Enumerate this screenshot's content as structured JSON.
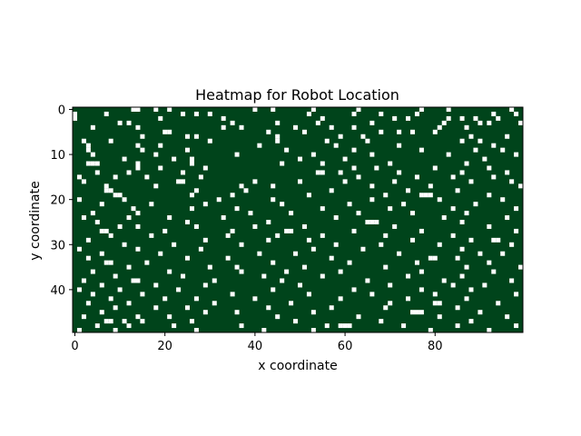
{
  "chart_data": {
    "type": "heatmap",
    "title": "Heatmap for Robot Location",
    "xlabel": "x coordinate",
    "ylabel": "y coordinate",
    "xlim": [
      -0.5,
      99.5
    ],
    "ylim": [
      49.5,
      -0.5
    ],
    "x_ticks": [
      0,
      20,
      40,
      60,
      80
    ],
    "y_ticks": [
      0,
      10,
      20,
      30,
      40
    ],
    "grid": false,
    "legend": "none",
    "colormap": {
      "0": "#00441b",
      "1": "#ffffff"
    },
    "grid_size": {
      "cols": 100,
      "rows": 50
    },
    "occupied_cells_note_free": [],
    "white_cells": [
      [
        0,
        13
      ],
      [
        0,
        14
      ],
      [
        0,
        18
      ],
      [
        0,
        21
      ],
      [
        0,
        40
      ],
      [
        0,
        44
      ],
      [
        0,
        53
      ],
      [
        0,
        63
      ],
      [
        0,
        77
      ],
      [
        0,
        83
      ],
      [
        0,
        97
      ],
      [
        1,
        0
      ],
      [
        1,
        7
      ],
      [
        1,
        24
      ],
      [
        1,
        27
      ],
      [
        1,
        30
      ],
      [
        1,
        52
      ],
      [
        1,
        62
      ],
      [
        1,
        68
      ],
      [
        1,
        76
      ],
      [
        1,
        93
      ],
      [
        1,
        98
      ],
      [
        2,
        0
      ],
      [
        2,
        19
      ],
      [
        2,
        33
      ],
      [
        2,
        55
      ],
      [
        2,
        71
      ],
      [
        2,
        74
      ],
      [
        2,
        83
      ],
      [
        2,
        86
      ],
      [
        2,
        89
      ],
      [
        2,
        94
      ],
      [
        3,
        10
      ],
      [
        3,
        12
      ],
      [
        3,
        35
      ],
      [
        3,
        45
      ],
      [
        3,
        54
      ],
      [
        3,
        66
      ],
      [
        3,
        82
      ],
      [
        3,
        90
      ],
      [
        3,
        92
      ],
      [
        3,
        99
      ],
      [
        4,
        4
      ],
      [
        4,
        14
      ],
      [
        4,
        33
      ],
      [
        4,
        37
      ],
      [
        4,
        49
      ],
      [
        4,
        57
      ],
      [
        4,
        62
      ],
      [
        4,
        81
      ],
      [
        4,
        87
      ],
      [
        5,
        20
      ],
      [
        5,
        21
      ],
      [
        5,
        43
      ],
      [
        5,
        51
      ],
      [
        5,
        68
      ],
      [
        5,
        72
      ],
      [
        5,
        75
      ],
      [
        5,
        80
      ],
      [
        6,
        15
      ],
      [
        6,
        25
      ],
      [
        6,
        27
      ],
      [
        6,
        45
      ],
      [
        6,
        59
      ],
      [
        6,
        64
      ],
      [
        6,
        88
      ],
      [
        6,
        96
      ],
      [
        7,
        2
      ],
      [
        7,
        8
      ],
      [
        7,
        30
      ],
      [
        7,
        45
      ],
      [
        7,
        56
      ],
      [
        7,
        65
      ],
      [
        7,
        86
      ],
      [
        7,
        90
      ],
      [
        8,
        3
      ],
      [
        8,
        14
      ],
      [
        8,
        19
      ],
      [
        8,
        41
      ],
      [
        8,
        58
      ],
      [
        8,
        72
      ],
      [
        8,
        93
      ],
      [
        9,
        3
      ],
      [
        9,
        15
      ],
      [
        9,
        25
      ],
      [
        9,
        47
      ],
      [
        9,
        62
      ],
      [
        9,
        77
      ],
      [
        9,
        89
      ],
      [
        9,
        95
      ],
      [
        10,
        4
      ],
      [
        10,
        18
      ],
      [
        10,
        36
      ],
      [
        10,
        53
      ],
      [
        10,
        66
      ],
      [
        10,
        83
      ],
      [
        10,
        98
      ],
      [
        11,
        11
      ],
      [
        11,
        22
      ],
      [
        11,
        26
      ],
      [
        11,
        50
      ],
      [
        11,
        60
      ],
      [
        11,
        91
      ],
      [
        12,
        3
      ],
      [
        12,
        4
      ],
      [
        12,
        5
      ],
      [
        12,
        14
      ],
      [
        12,
        26
      ],
      [
        12,
        46
      ],
      [
        12,
        55
      ],
      [
        12,
        70
      ],
      [
        12,
        87
      ],
      [
        13,
        14
      ],
      [
        13,
        19
      ],
      [
        13,
        29
      ],
      [
        13,
        62
      ],
      [
        13,
        67
      ],
      [
        13,
        80
      ],
      [
        13,
        92
      ],
      [
        14,
        5
      ],
      [
        14,
        12
      ],
      [
        14,
        24
      ],
      [
        14,
        54
      ],
      [
        14,
        55
      ],
      [
        14,
        59
      ],
      [
        14,
        72
      ],
      [
        14,
        86
      ],
      [
        14,
        96
      ],
      [
        15,
        1
      ],
      [
        15,
        9
      ],
      [
        15,
        16
      ],
      [
        15,
        28
      ],
      [
        15,
        63
      ],
      [
        15,
        76
      ],
      [
        15,
        84
      ],
      [
        15,
        93
      ],
      [
        16,
        2
      ],
      [
        16,
        23
      ],
      [
        16,
        24
      ],
      [
        16,
        40
      ],
      [
        16,
        50
      ],
      [
        16,
        60
      ],
      [
        16,
        71
      ],
      [
        16,
        88
      ],
      [
        16,
        97
      ],
      [
        17,
        7
      ],
      [
        17,
        18
      ],
      [
        17,
        37
      ],
      [
        17,
        44
      ],
      [
        17,
        66
      ],
      [
        17,
        79
      ],
      [
        17,
        99
      ],
      [
        18,
        7
      ],
      [
        18,
        8
      ],
      [
        18,
        27
      ],
      [
        18,
        38
      ],
      [
        18,
        57
      ],
      [
        18,
        74
      ],
      [
        18,
        85
      ],
      [
        19,
        9
      ],
      [
        19,
        10
      ],
      [
        19,
        26
      ],
      [
        19,
        35
      ],
      [
        19,
        52
      ],
      [
        19,
        69
      ],
      [
        19,
        77
      ],
      [
        19,
        78
      ],
      [
        19,
        79
      ],
      [
        19,
        92
      ],
      [
        20,
        1
      ],
      [
        20,
        11
      ],
      [
        20,
        32
      ],
      [
        20,
        44
      ],
      [
        20,
        66
      ],
      [
        20,
        81
      ],
      [
        20,
        95
      ],
      [
        21,
        6
      ],
      [
        21,
        17
      ],
      [
        21,
        29
      ],
      [
        21,
        46
      ],
      [
        21,
        61
      ],
      [
        21,
        73
      ],
      [
        21,
        89
      ],
      [
        22,
        13
      ],
      [
        22,
        26
      ],
      [
        22,
        36
      ],
      [
        22,
        55
      ],
      [
        22,
        70
      ],
      [
        22,
        84
      ],
      [
        22,
        98
      ],
      [
        23,
        4
      ],
      [
        23,
        14
      ],
      [
        23,
        39
      ],
      [
        23,
        48
      ],
      [
        23,
        63
      ],
      [
        23,
        75
      ],
      [
        23,
        87
      ],
      [
        24,
        2
      ],
      [
        24,
        12
      ],
      [
        24,
        21
      ],
      [
        24,
        33
      ],
      [
        24,
        58
      ],
      [
        24,
        82
      ],
      [
        24,
        96
      ],
      [
        25,
        5
      ],
      [
        25,
        25
      ],
      [
        25,
        43
      ],
      [
        25,
        65
      ],
      [
        25,
        66
      ],
      [
        25,
        67
      ],
      [
        25,
        86
      ],
      [
        26,
        10
      ],
      [
        26,
        14
      ],
      [
        26,
        27
      ],
      [
        26,
        40
      ],
      [
        26,
        51
      ],
      [
        26,
        71
      ],
      [
        26,
        92
      ],
      [
        27,
        6
      ],
      [
        27,
        7
      ],
      [
        27,
        20
      ],
      [
        27,
        35
      ],
      [
        27,
        47
      ],
      [
        27,
        48
      ],
      [
        27,
        62
      ],
      [
        27,
        77
      ],
      [
        27,
        98
      ],
      [
        28,
        8
      ],
      [
        28,
        17
      ],
      [
        28,
        34
      ],
      [
        28,
        45
      ],
      [
        28,
        55
      ],
      [
        28,
        69
      ],
      [
        28,
        84
      ],
      [
        29,
        3
      ],
      [
        29,
        29
      ],
      [
        29,
        43
      ],
      [
        29,
        52
      ],
      [
        29,
        75
      ],
      [
        29,
        88
      ],
      [
        29,
        93
      ],
      [
        29,
        94
      ],
      [
        30,
        11
      ],
      [
        30,
        22
      ],
      [
        30,
        37
      ],
      [
        30,
        58
      ],
      [
        30,
        68
      ],
      [
        30,
        81
      ],
      [
        30,
        97
      ],
      [
        31,
        1
      ],
      [
        31,
        14
      ],
      [
        31,
        28
      ],
      [
        31,
        53
      ],
      [
        31,
        64
      ],
      [
        31,
        86
      ],
      [
        32,
        6
      ],
      [
        32,
        19
      ],
      [
        32,
        41
      ],
      [
        32,
        49
      ],
      [
        32,
        72
      ],
      [
        32,
        90
      ],
      [
        32,
        95
      ],
      [
        33,
        3
      ],
      [
        33,
        25
      ],
      [
        33,
        34
      ],
      [
        33,
        57
      ],
      [
        33,
        79
      ],
      [
        33,
        80
      ],
      [
        33,
        85
      ],
      [
        34,
        7
      ],
      [
        34,
        8
      ],
      [
        34,
        16
      ],
      [
        34,
        44
      ],
      [
        34,
        61
      ],
      [
        34,
        76
      ],
      [
        34,
        92
      ],
      [
        35,
        12
      ],
      [
        35,
        30
      ],
      [
        35,
        36
      ],
      [
        35,
        51
      ],
      [
        35,
        69
      ],
      [
        35,
        87
      ],
      [
        35,
        99
      ],
      [
        36,
        4
      ],
      [
        36,
        21
      ],
      [
        36,
        37
      ],
      [
        36,
        47
      ],
      [
        36,
        59
      ],
      [
        36,
        77
      ],
      [
        36,
        93
      ],
      [
        37,
        9
      ],
      [
        37,
        24
      ],
      [
        37,
        42
      ],
      [
        37,
        55
      ],
      [
        37,
        74
      ],
      [
        37,
        86
      ],
      [
        38,
        2
      ],
      [
        38,
        13
      ],
      [
        38,
        14
      ],
      [
        38,
        31
      ],
      [
        38,
        46
      ],
      [
        38,
        65
      ],
      [
        38,
        82
      ],
      [
        38,
        97
      ],
      [
        39,
        6
      ],
      [
        39,
        18
      ],
      [
        39,
        29
      ],
      [
        39,
        50
      ],
      [
        39,
        70
      ],
      [
        39,
        84
      ],
      [
        39,
        91
      ],
      [
        40,
        1
      ],
      [
        40,
        10
      ],
      [
        40,
        23
      ],
      [
        40,
        44
      ],
      [
        40,
        62
      ],
      [
        40,
        77
      ],
      [
        40,
        88
      ],
      [
        41,
        4
      ],
      [
        41,
        15
      ],
      [
        41,
        35
      ],
      [
        41,
        52
      ],
      [
        41,
        66
      ],
      [
        41,
        80
      ],
      [
        41,
        98
      ],
      [
        42,
        8
      ],
      [
        42,
        20
      ],
      [
        42,
        27
      ],
      [
        42,
        40
      ],
      [
        42,
        59
      ],
      [
        42,
        74
      ],
      [
        42,
        87
      ],
      [
        43,
        3
      ],
      [
        43,
        12
      ],
      [
        43,
        31
      ],
      [
        43,
        48
      ],
      [
        43,
        70
      ],
      [
        43,
        80
      ],
      [
        43,
        81
      ],
      [
        43,
        94
      ],
      [
        44,
        9
      ],
      [
        44,
        18
      ],
      [
        44,
        25
      ],
      [
        44,
        43
      ],
      [
        44,
        57
      ],
      [
        44,
        69
      ],
      [
        44,
        85
      ],
      [
        45,
        6
      ],
      [
        45,
        29
      ],
      [
        45,
        36
      ],
      [
        45,
        53
      ],
      [
        45,
        75
      ],
      [
        45,
        76
      ],
      [
        45,
        77
      ],
      [
        45,
        90
      ],
      [
        46,
        2
      ],
      [
        46,
        14
      ],
      [
        46,
        21
      ],
      [
        46,
        45
      ],
      [
        46,
        63
      ],
      [
        46,
        81
      ],
      [
        46,
        96
      ],
      [
        47,
        7
      ],
      [
        47,
        8
      ],
      [
        47,
        11
      ],
      [
        47,
        15
      ],
      [
        47,
        26
      ],
      [
        47,
        49
      ],
      [
        47,
        68
      ],
      [
        47,
        88
      ],
      [
        48,
        5
      ],
      [
        48,
        12
      ],
      [
        48,
        22
      ],
      [
        48,
        37
      ],
      [
        48,
        56
      ],
      [
        48,
        59
      ],
      [
        48,
        60
      ],
      [
        48,
        61
      ],
      [
        48,
        73
      ],
      [
        48,
        85
      ],
      [
        48,
        98
      ],
      [
        49,
        1
      ],
      [
        49,
        9
      ],
      [
        49,
        27
      ],
      [
        49,
        42
      ],
      [
        49,
        53
      ],
      [
        49,
        79
      ],
      [
        49,
        92
      ]
    ]
  }
}
